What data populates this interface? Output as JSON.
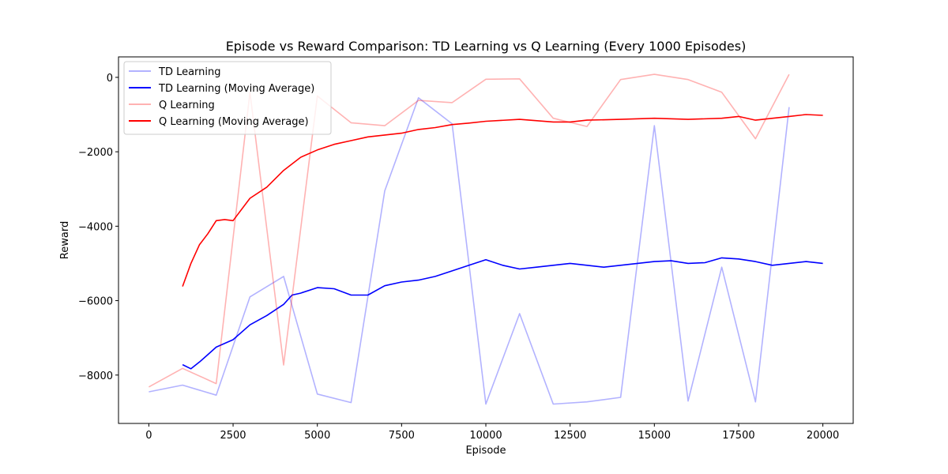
{
  "chart_data": {
    "type": "line",
    "title": "Episode vs Reward Comparison: TD Learning vs Q Learning (Every 1000 Episodes)",
    "xlabel": "Episode",
    "ylabel": "Reward",
    "xlim": [
      -900,
      20900
    ],
    "ylim": [
      -9300,
      550
    ],
    "x_ticks": [
      0,
      2500,
      5000,
      7500,
      10000,
      12500,
      15000,
      17500,
      20000
    ],
    "x_tick_labels": [
      "0",
      "2500",
      "5000",
      "7500",
      "10000",
      "12500",
      "15000",
      "17500",
      "20000"
    ],
    "y_ticks": [
      -8000,
      -6000,
      -4000,
      -2000,
      0
    ],
    "y_tick_labels": [
      "−8000",
      "−6000",
      "−4000",
      "−2000",
      "0"
    ],
    "grid": false,
    "legend_position": "top-left",
    "series": [
      {
        "name": "TD Learning",
        "color": "#0000ff",
        "opacity": 0.3,
        "x": [
          0,
          1000,
          2000,
          3000,
          4000,
          5000,
          6000,
          7000,
          8000,
          9000,
          10000,
          11000,
          12000,
          13000,
          14000,
          15000,
          16000,
          17000,
          18000,
          19000
        ],
        "values": [
          -8450,
          -8270,
          -8540,
          -5900,
          -5350,
          -8510,
          -8740,
          -3050,
          -550,
          -1250,
          -8780,
          -6350,
          -8780,
          -8720,
          -8600,
          -1300,
          -8700,
          -5100,
          -8720,
          -800
        ]
      },
      {
        "name": "TD Learning (Moving Average)",
        "color": "#0000ff",
        "opacity": 1,
        "x": [
          1000,
          1250,
          1500,
          1750,
          2000,
          2500,
          3000,
          3500,
          4000,
          4250,
          4500,
          5000,
          5500,
          6000,
          6500,
          7000,
          7500,
          8000,
          8500,
          9000,
          9500,
          10000,
          10500,
          11000,
          11500,
          12000,
          12500,
          13000,
          13500,
          14000,
          14500,
          15000,
          15500,
          16000,
          16500,
          17000,
          17500,
          18000,
          18500,
          19000,
          19500,
          20000
        ],
        "values": [
          -7720,
          -7830,
          -7650,
          -7450,
          -7250,
          -7050,
          -6650,
          -6400,
          -6100,
          -5850,
          -5800,
          -5650,
          -5680,
          -5850,
          -5850,
          -5600,
          -5500,
          -5450,
          -5350,
          -5200,
          -5050,
          -4900,
          -5050,
          -5150,
          -5100,
          -5050,
          -5000,
          -5050,
          -5100,
          -5050,
          -5000,
          -4950,
          -4930,
          -5000,
          -4980,
          -4850,
          -4880,
          -4950,
          -5050,
          -5000,
          -4950,
          -5000
        ]
      },
      {
        "name": "Q Learning",
        "color": "#ff0000",
        "opacity": 0.3,
        "x": [
          0,
          1000,
          2000,
          3000,
          4000,
          5000,
          6000,
          7000,
          8000,
          9000,
          10000,
          11000,
          12000,
          13000,
          14000,
          15000,
          16000,
          17000,
          18000,
          19000
        ],
        "values": [
          -8320,
          -7820,
          -8230,
          -400,
          -7730,
          -500,
          -1220,
          -1300,
          -620,
          -680,
          -50,
          -40,
          -1100,
          -1320,
          -60,
          80,
          -60,
          -400,
          -1650,
          80
        ]
      },
      {
        "name": "Q Learning (Moving Average)",
        "color": "#ff0000",
        "opacity": 1,
        "x": [
          1000,
          1250,
          1500,
          1750,
          2000,
          2250,
          2500,
          3000,
          3500,
          4000,
          4500,
          5000,
          5500,
          6000,
          6500,
          7000,
          7500,
          8000,
          8500,
          9000,
          9500,
          10000,
          11000,
          12000,
          12500,
          13000,
          14000,
          15000,
          16000,
          17000,
          17500,
          18000,
          19000,
          19500,
          20000
        ],
        "values": [
          -5620,
          -5000,
          -4500,
          -4200,
          -3850,
          -3820,
          -3850,
          -3250,
          -2950,
          -2500,
          -2150,
          -1950,
          -1800,
          -1700,
          -1600,
          -1550,
          -1500,
          -1400,
          -1350,
          -1270,
          -1230,
          -1180,
          -1130,
          -1200,
          -1200,
          -1150,
          -1130,
          -1100,
          -1130,
          -1100,
          -1050,
          -1150,
          -1050,
          -1000,
          -1020
        ]
      }
    ]
  }
}
